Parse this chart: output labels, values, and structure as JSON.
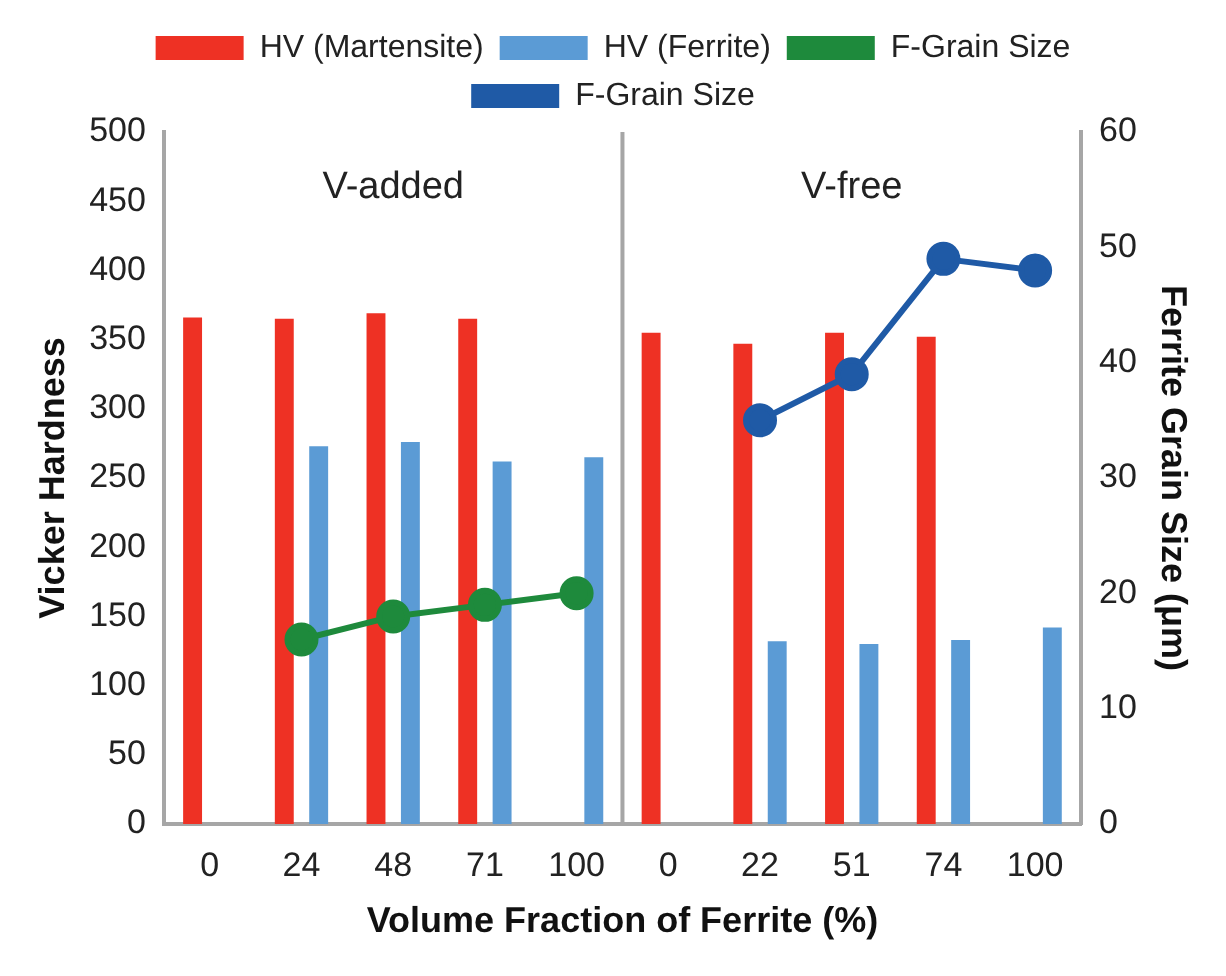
{
  "chart_data": {
    "type": "bar",
    "xlabel": "Volume Fraction of Ferrite (%)",
    "ylabel": "Vicker Hardness",
    "y2label": "Ferrite Grain Size (μm)",
    "categories": [
      "0",
      "24",
      "48",
      "71",
      "100",
      "0",
      "22",
      "51",
      "74",
      "100"
    ],
    "series": [
      {
        "name": "HV (Martensite)",
        "color": "#ee3124",
        "values": [
          366,
          365,
          369,
          365,
          null,
          355,
          347,
          355,
          352,
          null
        ]
      },
      {
        "name": "HV (Ferrite)",
        "color": "#5b9bd5",
        "values": [
          null,
          273,
          276,
          262,
          265,
          null,
          132,
          130,
          133,
          142
        ]
      },
      {
        "name": "F-Grain Size",
        "type": "line",
        "axis": "y2",
        "color": "#1e8a3c",
        "values": [
          null,
          16,
          18,
          19,
          20,
          null,
          null,
          null,
          null,
          null
        ]
      },
      {
        "name": "F-Grain Size",
        "type": "line",
        "axis": "y2",
        "color": "#1f5aa6",
        "values": [
          null,
          null,
          null,
          null,
          null,
          null,
          35,
          39,
          49,
          48
        ]
      }
    ],
    "ylim": [
      0,
      500
    ],
    "yticks": [
      0,
      50,
      100,
      150,
      200,
      250,
      300,
      350,
      400,
      450,
      500
    ],
    "y2lim": [
      0,
      60
    ],
    "y2ticks": [
      0,
      10,
      20,
      30,
      40,
      50,
      60
    ],
    "annotations": [
      "V-added",
      "V-free"
    ],
    "grid": false,
    "legend": "top",
    "marker": "circle",
    "line_style": "solid"
  }
}
